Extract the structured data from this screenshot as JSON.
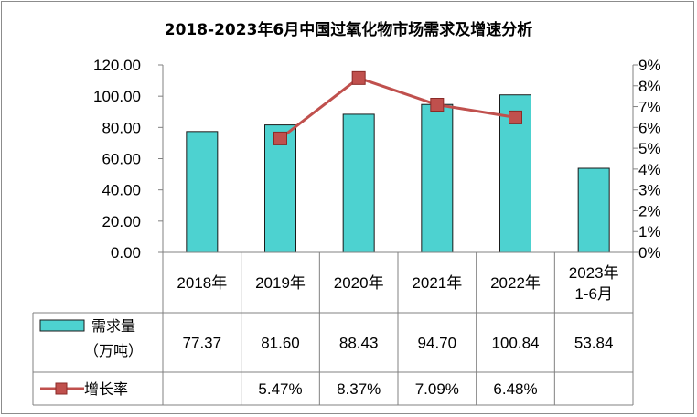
{
  "chart_data": {
    "type": "bar",
    "title": "2018-2023年6月中国过氧化物市场需求及增速分析",
    "categories": [
      "2018年",
      "2019年",
      "2020年",
      "2021年",
      "2022年",
      "2023年 1-6月"
    ],
    "category_lines": [
      [
        "2018年"
      ],
      [
        "2019年"
      ],
      [
        "2020年"
      ],
      [
        "2021年"
      ],
      [
        "2022年"
      ],
      [
        "2023年",
        "1-6月"
      ]
    ],
    "series": [
      {
        "name": "需求量（万吨）",
        "legend_lines": [
          "需求量",
          "（万吨）"
        ],
        "type": "bar",
        "axis": "left",
        "values": [
          77.37,
          81.6,
          88.43,
          94.7,
          100.84,
          53.84
        ],
        "labels": [
          "77.37",
          "81.60",
          "88.43",
          "94.70",
          "100.84",
          "53.84"
        ]
      },
      {
        "name": "增长率",
        "type": "line",
        "axis": "right",
        "values": [
          null,
          5.47,
          8.37,
          7.09,
          6.48,
          null
        ],
        "labels": [
          "",
          "5.47%",
          "8.37%",
          "7.09%",
          "6.48%",
          ""
        ]
      }
    ],
    "ylim": [
      0,
      120
    ],
    "y_ticks": [
      "0.00",
      "20.00",
      "40.00",
      "60.00",
      "80.00",
      "100.00",
      "120.00"
    ],
    "y2lim": [
      0,
      9
    ],
    "y2_ticks": [
      "0%",
      "1%",
      "2%",
      "3%",
      "4%",
      "5%",
      "6%",
      "7%",
      "8%",
      "9%"
    ],
    "grid": false,
    "legend": "data-table",
    "colors": {
      "bar": "#4DD2D0",
      "bar_edge": "#1a1a1a",
      "line": "#C0504D"
    }
  }
}
